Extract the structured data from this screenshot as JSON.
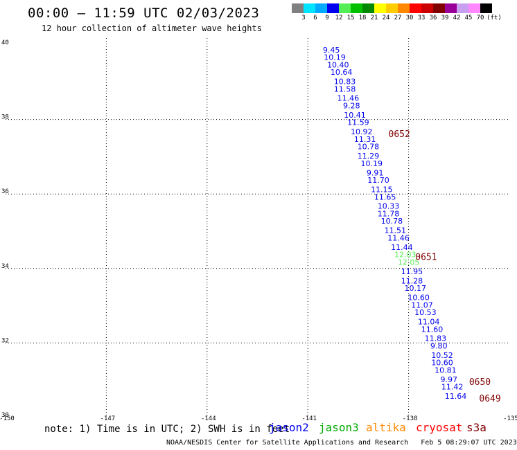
{
  "header": {
    "title": "00:00 – 11:59 UTC 02/03/2023",
    "subtitle": "12 hour collection of altimeter wave heights"
  },
  "color_scale": {
    "unit": "(ft)",
    "stops": [
      {
        "label": "3",
        "color": "#808080"
      },
      {
        "label": "6",
        "color": "#00e5ff"
      },
      {
        "label": "9",
        "color": "#00aaff"
      },
      {
        "label": "12",
        "color": "#0000ee"
      },
      {
        "label": "15",
        "color": "#55ee55"
      },
      {
        "label": "18",
        "color": "#00c000"
      },
      {
        "label": "21",
        "color": "#008800"
      },
      {
        "label": "24",
        "color": "#ffff00"
      },
      {
        "label": "27",
        "color": "#ffcc00"
      },
      {
        "label": "30",
        "color": "#ff8800"
      },
      {
        "label": "33",
        "color": "#ff0000"
      },
      {
        "label": "36",
        "color": "#cc0000"
      },
      {
        "label": "39",
        "color": "#800000"
      },
      {
        "label": "42",
        "color": "#990099"
      },
      {
        "label": "45",
        "color": "#c8a0f0"
      },
      {
        "label": "70",
        "color": "#ff88ff"
      },
      {
        "label": "",
        "color": "#000000"
      }
    ]
  },
  "map": {
    "lon_ticks": [
      "-150",
      "-147",
      "-144",
      "-141",
      "-138",
      "-135"
    ],
    "lat_ticks": [
      "30",
      "32",
      "34",
      "36",
      "38",
      "40"
    ],
    "lon_range": [
      -150,
      -135
    ],
    "lat_range": [
      30,
      40
    ],
    "grid": "dotted"
  },
  "chart_data": {
    "type": "scatter",
    "description_units": "wave height in feet, positioned by lon/lat",
    "points": [
      {
        "lon": -140.3,
        "lat": 39.8,
        "value": "9.45",
        "color": "#0000ee"
      },
      {
        "lon": -140.2,
        "lat": 39.6,
        "value": "10.19",
        "color": "#0000ee"
      },
      {
        "lon": -140.1,
        "lat": 39.4,
        "value": "10.40",
        "color": "#0000ee"
      },
      {
        "lon": -140.0,
        "lat": 39.2,
        "value": "10.64",
        "color": "#0000ee"
      },
      {
        "lon": -139.9,
        "lat": 38.95,
        "value": "10.83",
        "color": "#0000ee"
      },
      {
        "lon": -139.9,
        "lat": 38.75,
        "value": "11.58",
        "color": "#0000ee"
      },
      {
        "lon": -139.8,
        "lat": 38.5,
        "value": "11.46",
        "color": "#0000ee"
      },
      {
        "lon": -139.7,
        "lat": 38.3,
        "value": "9.28",
        "color": "#0000ee"
      },
      {
        "lon": -139.6,
        "lat": 38.05,
        "value": "10.41",
        "color": "#0000ee"
      },
      {
        "lon": -139.5,
        "lat": 37.85,
        "value": "11.59",
        "color": "#0000ee"
      },
      {
        "lon": -139.4,
        "lat": 37.6,
        "value": "10.92",
        "color": "#0000ee"
      },
      {
        "lon": -139.3,
        "lat": 37.4,
        "value": "11.31",
        "color": "#0000ee"
      },
      {
        "lon": -139.2,
        "lat": 37.2,
        "value": "10.78",
        "color": "#0000ee"
      },
      {
        "lon": -139.2,
        "lat": 36.95,
        "value": "11.29",
        "color": "#0000ee"
      },
      {
        "lon": -139.1,
        "lat": 36.75,
        "value": "10.19",
        "color": "#0000ee"
      },
      {
        "lon": -139.0,
        "lat": 36.5,
        "value": "9.91",
        "color": "#0000ee"
      },
      {
        "lon": -138.9,
        "lat": 36.3,
        "value": "11.70",
        "color": "#0000ee"
      },
      {
        "lon": -138.8,
        "lat": 36.05,
        "value": "11.15",
        "color": "#0000ee"
      },
      {
        "lon": -138.7,
        "lat": 35.85,
        "value": "11.65",
        "color": "#0000ee"
      },
      {
        "lon": -138.6,
        "lat": 35.6,
        "value": "10.33",
        "color": "#0000ee"
      },
      {
        "lon": -138.6,
        "lat": 35.4,
        "value": "11.78",
        "color": "#0000ee"
      },
      {
        "lon": -138.5,
        "lat": 35.2,
        "value": "10.78",
        "color": "#0000ee"
      },
      {
        "lon": -138.4,
        "lat": 34.95,
        "value": "11.51",
        "color": "#0000ee"
      },
      {
        "lon": -138.3,
        "lat": 34.75,
        "value": "11.46",
        "color": "#0000ee"
      },
      {
        "lon": -138.2,
        "lat": 34.5,
        "value": "11.44",
        "color": "#0000ee"
      },
      {
        "lon": -138.1,
        "lat": 34.3,
        "value": "12.03",
        "color": "#55ee55"
      },
      {
        "lon": -138.0,
        "lat": 34.1,
        "value": "12.05",
        "color": "#55ee55"
      },
      {
        "lon": -137.9,
        "lat": 33.85,
        "value": "11.95",
        "color": "#0000ee"
      },
      {
        "lon": -137.9,
        "lat": 33.6,
        "value": "11.28",
        "color": "#0000ee"
      },
      {
        "lon": -137.8,
        "lat": 33.4,
        "value": "10.17",
        "color": "#0000ee"
      },
      {
        "lon": -137.7,
        "lat": 33.15,
        "value": "10.60",
        "color": "#0000ee"
      },
      {
        "lon": -137.6,
        "lat": 32.95,
        "value": "11.07",
        "color": "#0000ee"
      },
      {
        "lon": -137.5,
        "lat": 32.75,
        "value": "10.53",
        "color": "#0000ee"
      },
      {
        "lon": -137.4,
        "lat": 32.5,
        "value": "11.04",
        "color": "#0000ee"
      },
      {
        "lon": -137.3,
        "lat": 32.3,
        "value": "11.60",
        "color": "#0000ee"
      },
      {
        "lon": -137.2,
        "lat": 32.05,
        "value": "11.83",
        "color": "#0000ee"
      },
      {
        "lon": -137.1,
        "lat": 31.85,
        "value": "9.80",
        "color": "#0000ee"
      },
      {
        "lon": -137.0,
        "lat": 31.6,
        "value": "10.52",
        "color": "#0000ee"
      },
      {
        "lon": -137.0,
        "lat": 31.4,
        "value": "10.60",
        "color": "#0000ee"
      },
      {
        "lon": -136.9,
        "lat": 31.2,
        "value": "10.81",
        "color": "#0000ee"
      },
      {
        "lon": -136.8,
        "lat": 30.95,
        "value": "9.97",
        "color": "#0000ee"
      },
      {
        "lon": -136.7,
        "lat": 30.75,
        "value": "11.42",
        "color": "#0000ee"
      },
      {
        "lon": -136.6,
        "lat": 30.5,
        "value": "11.64",
        "color": "#0000ee"
      }
    ],
    "time_labels": [
      {
        "lon": -138.6,
        "lat": 37.6,
        "text": "0652",
        "color": "#800000"
      },
      {
        "lon": -137.8,
        "lat": 34.3,
        "text": "0651",
        "color": "#800000"
      },
      {
        "lon": -136.2,
        "lat": 30.95,
        "text": "0650",
        "color": "#800000"
      },
      {
        "lon": -135.9,
        "lat": 30.5,
        "text": "0649",
        "color": "#800000"
      }
    ]
  },
  "footer": {
    "note": "note: 1) Time is in UTC; 2) SWH is in feet",
    "satellites": [
      {
        "name": "jason2",
        "color": "#0000ee"
      },
      {
        "name": "jason3",
        "color": "#00aa00"
      },
      {
        "name": "altika",
        "color": "#ff8800"
      },
      {
        "name": "cryosat",
        "color": "#ff0000"
      },
      {
        "name": "s3a",
        "color": "#800000"
      }
    ],
    "credit": "NOAA/NESDIS Center for Satellite Applications and Research",
    "timestamp": "Feb  5 08:29:07 UTC 2023"
  }
}
